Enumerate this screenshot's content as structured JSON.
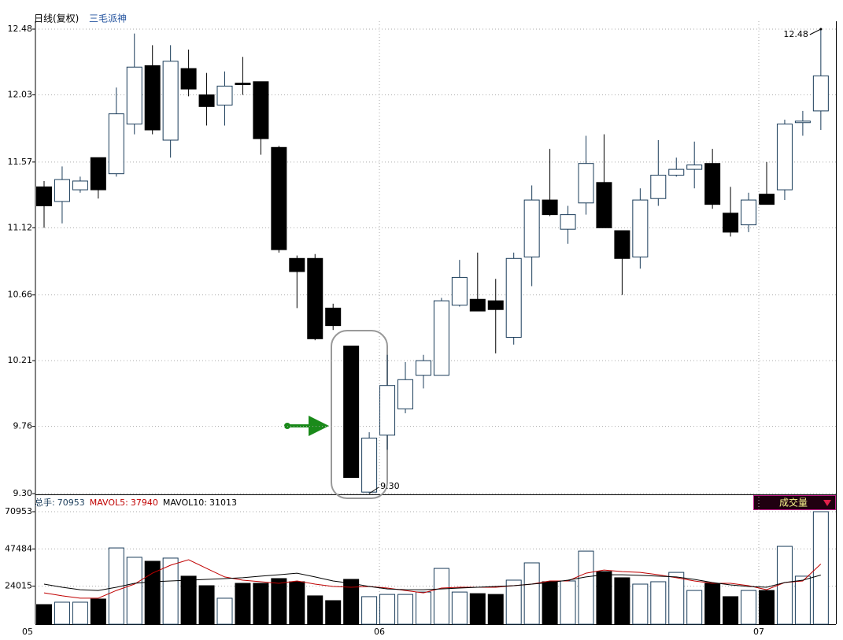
{
  "chart_data": [
    {
      "type": "candlestick",
      "title": "日线(复权)",
      "subtitle": "三毛派神",
      "open": [
        11.4,
        11.3,
        11.38,
        11.6,
        11.49,
        11.83,
        12.23,
        11.72,
        12.21,
        12.03,
        11.96,
        12.11,
        12.12,
        11.67,
        10.91,
        10.91,
        10.57,
        10.31,
        9.31,
        9.7,
        9.88,
        10.11,
        10.11,
        10.59,
        10.63,
        10.62,
        10.37,
        10.92,
        11.31,
        11.11,
        11.29,
        11.43,
        11.1,
        10.92,
        11.32,
        11.48,
        11.52,
        11.56,
        11.22,
        11.14,
        11.35,
        11.38,
        11.84,
        11.92
      ],
      "high": [
        11.44,
        11.54,
        11.47,
        11.6,
        12.08,
        12.45,
        12.37,
        12.37,
        12.34,
        12.18,
        12.19,
        12.29,
        12.12,
        11.68,
        10.93,
        10.94,
        10.6,
        10.31,
        9.72,
        10.25,
        10.2,
        10.25,
        10.64,
        10.9,
        10.95,
        10.77,
        10.95,
        11.41,
        11.66,
        11.27,
        11.75,
        11.76,
        11.1,
        11.39,
        11.72,
        11.6,
        11.71,
        11.66,
        11.4,
        11.36,
        11.57,
        11.86,
        11.92,
        12.48
      ],
      "low": [
        11.12,
        11.15,
        11.36,
        11.32,
        11.47,
        11.76,
        11.76,
        11.6,
        12.02,
        11.82,
        11.82,
        12.03,
        11.62,
        10.95,
        10.57,
        10.35,
        10.42,
        9.41,
        9.3,
        9.6,
        9.85,
        10.02,
        10.11,
        10.58,
        10.55,
        10.26,
        10.32,
        10.72,
        11.2,
        11.01,
        11.21,
        11.12,
        10.66,
        10.84,
        11.27,
        11.47,
        11.39,
        11.25,
        11.06,
        11.09,
        11.28,
        11.31,
        11.75,
        11.79
      ],
      "close": [
        11.27,
        11.45,
        11.44,
        11.38,
        11.9,
        12.22,
        11.79,
        12.26,
        12.07,
        11.95,
        12.09,
        12.1,
        11.73,
        10.97,
        10.82,
        10.36,
        10.45,
        9.41,
        9.68,
        10.04,
        10.08,
        10.21,
        10.62,
        10.78,
        10.55,
        10.56,
        10.91,
        11.31,
        11.21,
        11.21,
        11.56,
        11.12,
        10.91,
        11.31,
        11.48,
        11.52,
        11.55,
        11.28,
        11.09,
        11.31,
        11.28,
        11.83,
        11.85,
        12.16
      ],
      "ylim": [
        9.3,
        12.48
      ],
      "yticks": [
        {
          "value": 9.3,
          "label": "9.30"
        },
        9.76,
        10.21,
        10.66,
        11.12,
        11.57,
        12.03,
        12.48
      ],
      "grid": true,
      "up_color": "#ffffff",
      "down_color": "#000000",
      "edge_color": "#1a3c5a",
      "high_label": "12.48",
      "low_label": "9.30"
    },
    {
      "type": "volume",
      "title": "成交量",
      "categories": [
        "05",
        null,
        null,
        null,
        null,
        null,
        null,
        null,
        null,
        null,
        null,
        null,
        null,
        null,
        null,
        null,
        null,
        null,
        null,
        "06",
        null,
        null,
        null,
        null,
        null,
        null,
        null,
        null,
        null,
        null,
        null,
        null,
        null,
        null,
        null,
        null,
        null,
        null,
        null,
        null,
        "07",
        null,
        null,
        null
      ],
      "series": [
        {
          "name": "总手:",
          "color": "#1a3c5a",
          "kind": "bar",
          "values": [
            12400,
            13900,
            13900,
            15900,
            48100,
            42200,
            39700,
            41700,
            30300,
            24300,
            16400,
            25800,
            25800,
            28800,
            26800,
            17900,
            14900,
            28300,
            17400,
            18800,
            18800,
            20300,
            35200,
            20300,
            19300,
            18800,
            27800,
            38700,
            26800,
            27300,
            46100,
            33200,
            29300,
            25300,
            26800,
            32700,
            21300,
            25800,
            17400,
            21300,
            21300,
            49100,
            30300,
            70953
          ]
        },
        {
          "name": "MAVOL5:",
          "color": "#c00000",
          "kind": "line",
          "values": [
            19800,
            17900,
            16400,
            16400,
            21300,
            25300,
            32200,
            37200,
            40700,
            35200,
            29800,
            27800,
            26800,
            25800,
            27300,
            25300,
            23800,
            23300,
            23800,
            22800,
            21300,
            19800,
            22800,
            23300,
            23300,
            23300,
            24300,
            25300,
            27300,
            27300,
            32200,
            34200,
            33200,
            32700,
            31200,
            29300,
            27300,
            25800,
            25800,
            24300,
            21800,
            26300,
            27300,
            37940
          ]
        },
        {
          "name": "MAVOL10:",
          "color": "#000000",
          "kind": "line",
          "values": [
            25300,
            23300,
            21800,
            21300,
            23300,
            25800,
            26800,
            27300,
            27800,
            28300,
            28800,
            29300,
            30300,
            31200,
            32200,
            29800,
            27300,
            25800,
            23800,
            22300,
            21800,
            21800,
            22300,
            22800,
            23300,
            23800,
            24300,
            25300,
            26300,
            27800,
            29800,
            31200,
            31200,
            30800,
            30300,
            29800,
            28300,
            26300,
            24800,
            23800,
            23300,
            26300,
            27800,
            31013
          ]
        }
      ],
      "ylim": [
        0,
        70953
      ],
      "yticks": [
        24015,
        47484,
        70953
      ],
      "grid": true
    }
  ]
}
